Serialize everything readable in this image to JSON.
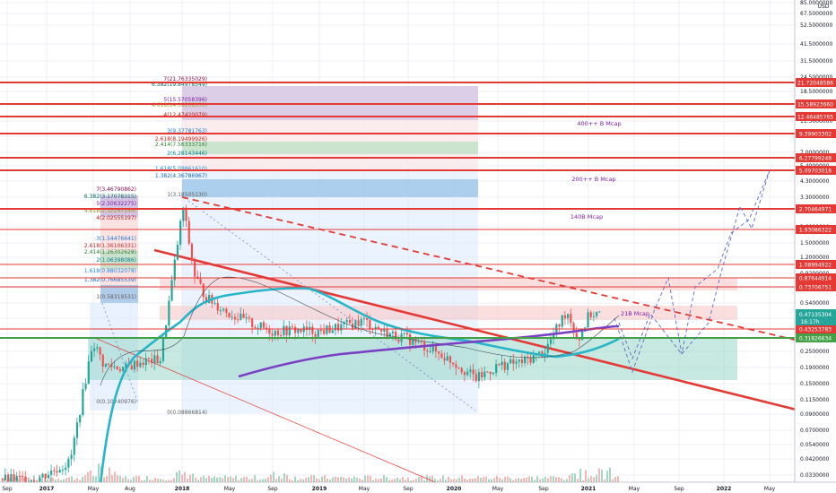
{
  "chart_data": {
    "type": "candlestick",
    "title": "",
    "currency_label": "USD",
    "scale": "log",
    "grid": true,
    "y_ticks": [
      "85.0000000",
      "67.5000000",
      "52.5000000",
      "41.5000000",
      "31.5000000",
      "24.5000000",
      "18.5000000",
      "14.5000000",
      "11.5000000",
      "9.0000000",
      "7.0000000",
      "5.4000000",
      "4.3000000",
      "3.3000000",
      "2.6000000",
      "2.0000000",
      "1.5000000",
      "1.2000000",
      "0.9200000",
      "0.7200000",
      "0.5400000",
      "0.4200000",
      "0.3200000",
      "0.2500000",
      "0.1900000",
      "0.1500000",
      "0.1150000",
      "0.0900000",
      "0.0700000",
      "0.0540000",
      "0.0420000",
      "0.0330000"
    ],
    "x_ticks": [
      "Sep",
      "2017",
      "May",
      "Aug",
      "2018",
      "May",
      "Sep",
      "2019",
      "May",
      "Sep",
      "2020",
      "May",
      "Sep",
      "2021",
      "May",
      "Sep",
      "2022",
      "May"
    ],
    "price_labels": [
      {
        "value": "21.72048586",
        "color": "#e53935"
      },
      {
        "value": "15.58923660",
        "color": "#e53935"
      },
      {
        "value": "12.46485765",
        "color": "#e53935"
      },
      {
        "value": "9.39903302",
        "color": "#e53935"
      },
      {
        "value": "6.27799248",
        "color": "#e53935"
      },
      {
        "value": "5.09703018",
        "color": "#e53935"
      },
      {
        "value": "2.70464971",
        "color": "#e53935"
      },
      {
        "value": "1.93086322",
        "color": "#e53935"
      },
      {
        "value": "1.08994922",
        "color": "#e53935"
      },
      {
        "value": "0.87644914",
        "color": "#e53935"
      },
      {
        "value": "0.73706751",
        "color": "#e53935"
      },
      {
        "value": "0.43253783",
        "color": "#e53935"
      },
      {
        "value": "0.31826634",
        "color": "#43a047"
      }
    ],
    "current_price": {
      "value": "0.47135304",
      "countdown": "16:17h",
      "color": "#26a69a"
    },
    "fib_left": [
      {
        "label": "7(3.46790862)",
        "color": "#880e4f"
      },
      {
        "label": "6.382(3.17078315)",
        "color": "#00695c"
      },
      {
        "label": "5(2.50632275)",
        "color": "#7b1fa2"
      },
      {
        "label": "4.618(2.32267244)",
        "color": "#9e9d24"
      },
      {
        "label": "4(2.02555197)",
        "color": "#b71c1c"
      },
      {
        "label": "3(1.54476641)",
        "color": "#1976d2"
      },
      {
        "label": "2.618(1.36106331)",
        "color": "#c62828"
      },
      {
        "label": "2.414(1.26302628)",
        "color": "#2e7d32"
      },
      {
        "label": "2(1.06398086)",
        "color": "#00838f"
      },
      {
        "label": "1.618(0.88032078)",
        "color": "#1e88e5"
      },
      {
        "label": "1.382(0.76685539)",
        "color": "#1565c0"
      },
      {
        "label": "1(0.58319531)",
        "color": "#616161"
      },
      {
        "label": "0(0.10240976)",
        "color": "#616161"
      }
    ],
    "fib_right": [
      {
        "label": "7(21.76335029)",
        "color": "#880e4f"
      },
      {
        "label": "6.382(19.84978549)",
        "color": "#00695c"
      },
      {
        "label": "5(15.57058396)",
        "color": "#7b1fa2"
      },
      {
        "label": "4.618(14.39268133)",
        "color": "#9e9d24"
      },
      {
        "label": "4(12.47420079)",
        "color": "#b71c1c"
      },
      {
        "label": "3(9.37781763)",
        "color": "#1976d2"
      },
      {
        "label": "2.618(8.19499926)",
        "color": "#c62828"
      },
      {
        "label": "2.414(7.56333716)",
        "color": "#2e7d32"
      },
      {
        "label": "2(6.28143446)",
        "color": "#00838f"
      },
      {
        "label": "1.618(5.09861610)",
        "color": "#1e88e5"
      },
      {
        "label": "1.382(4.36786967)",
        "color": "#1565c0"
      },
      {
        "label": "1(3.18505130)",
        "color": "#616161"
      },
      {
        "label": "0(0.08866814)",
        "color": "#616161"
      }
    ],
    "annotations": [
      {
        "text": "400++ B Mcap",
        "color": "#7b1fa2"
      },
      {
        "text": "200++ B Mcap",
        "color": "#7b1fa2"
      },
      {
        "text": "140B Mcap",
        "color": "#7b1fa2"
      },
      {
        "text": "21B Mcap",
        "color": "#7b1fa2"
      }
    ],
    "colors": {
      "up": "#26a69a",
      "down": "#ef5350",
      "sr_line": "#e53935",
      "support": "#43a047",
      "ma_fast": "#26b6c8",
      "ma_slow": "#7b3fc4",
      "projection": "#5c6bc0"
    },
    "series": [
      {
        "name": "",
        "description": "approximate candle closes (monthly path)",
        "x": [
          "2016-09",
          "2016-12",
          "2017-03",
          "2017-05",
          "2017-06",
          "2017-08",
          "2017-09",
          "2017-11",
          "2018-01",
          "2018-02",
          "2018-03",
          "2018-05",
          "2018-07",
          "2018-09",
          "2018-11",
          "2019-01",
          "2019-03",
          "2019-05",
          "2019-07",
          "2019-09",
          "2019-11",
          "2020-01",
          "2020-03",
          "2020-05",
          "2020-07",
          "2020-09",
          "2020-11",
          "2020-12",
          "2021-01",
          "2021-02"
        ],
        "y": [
          0.03,
          0.03,
          0.04,
          0.3,
          0.2,
          0.19,
          0.21,
          0.22,
          2.8,
          0.9,
          0.62,
          0.48,
          0.4,
          0.35,
          0.36,
          0.35,
          0.38,
          0.42,
          0.34,
          0.31,
          0.26,
          0.21,
          0.16,
          0.2,
          0.21,
          0.25,
          0.5,
          0.3,
          0.47,
          0.47
        ]
      }
    ]
  }
}
